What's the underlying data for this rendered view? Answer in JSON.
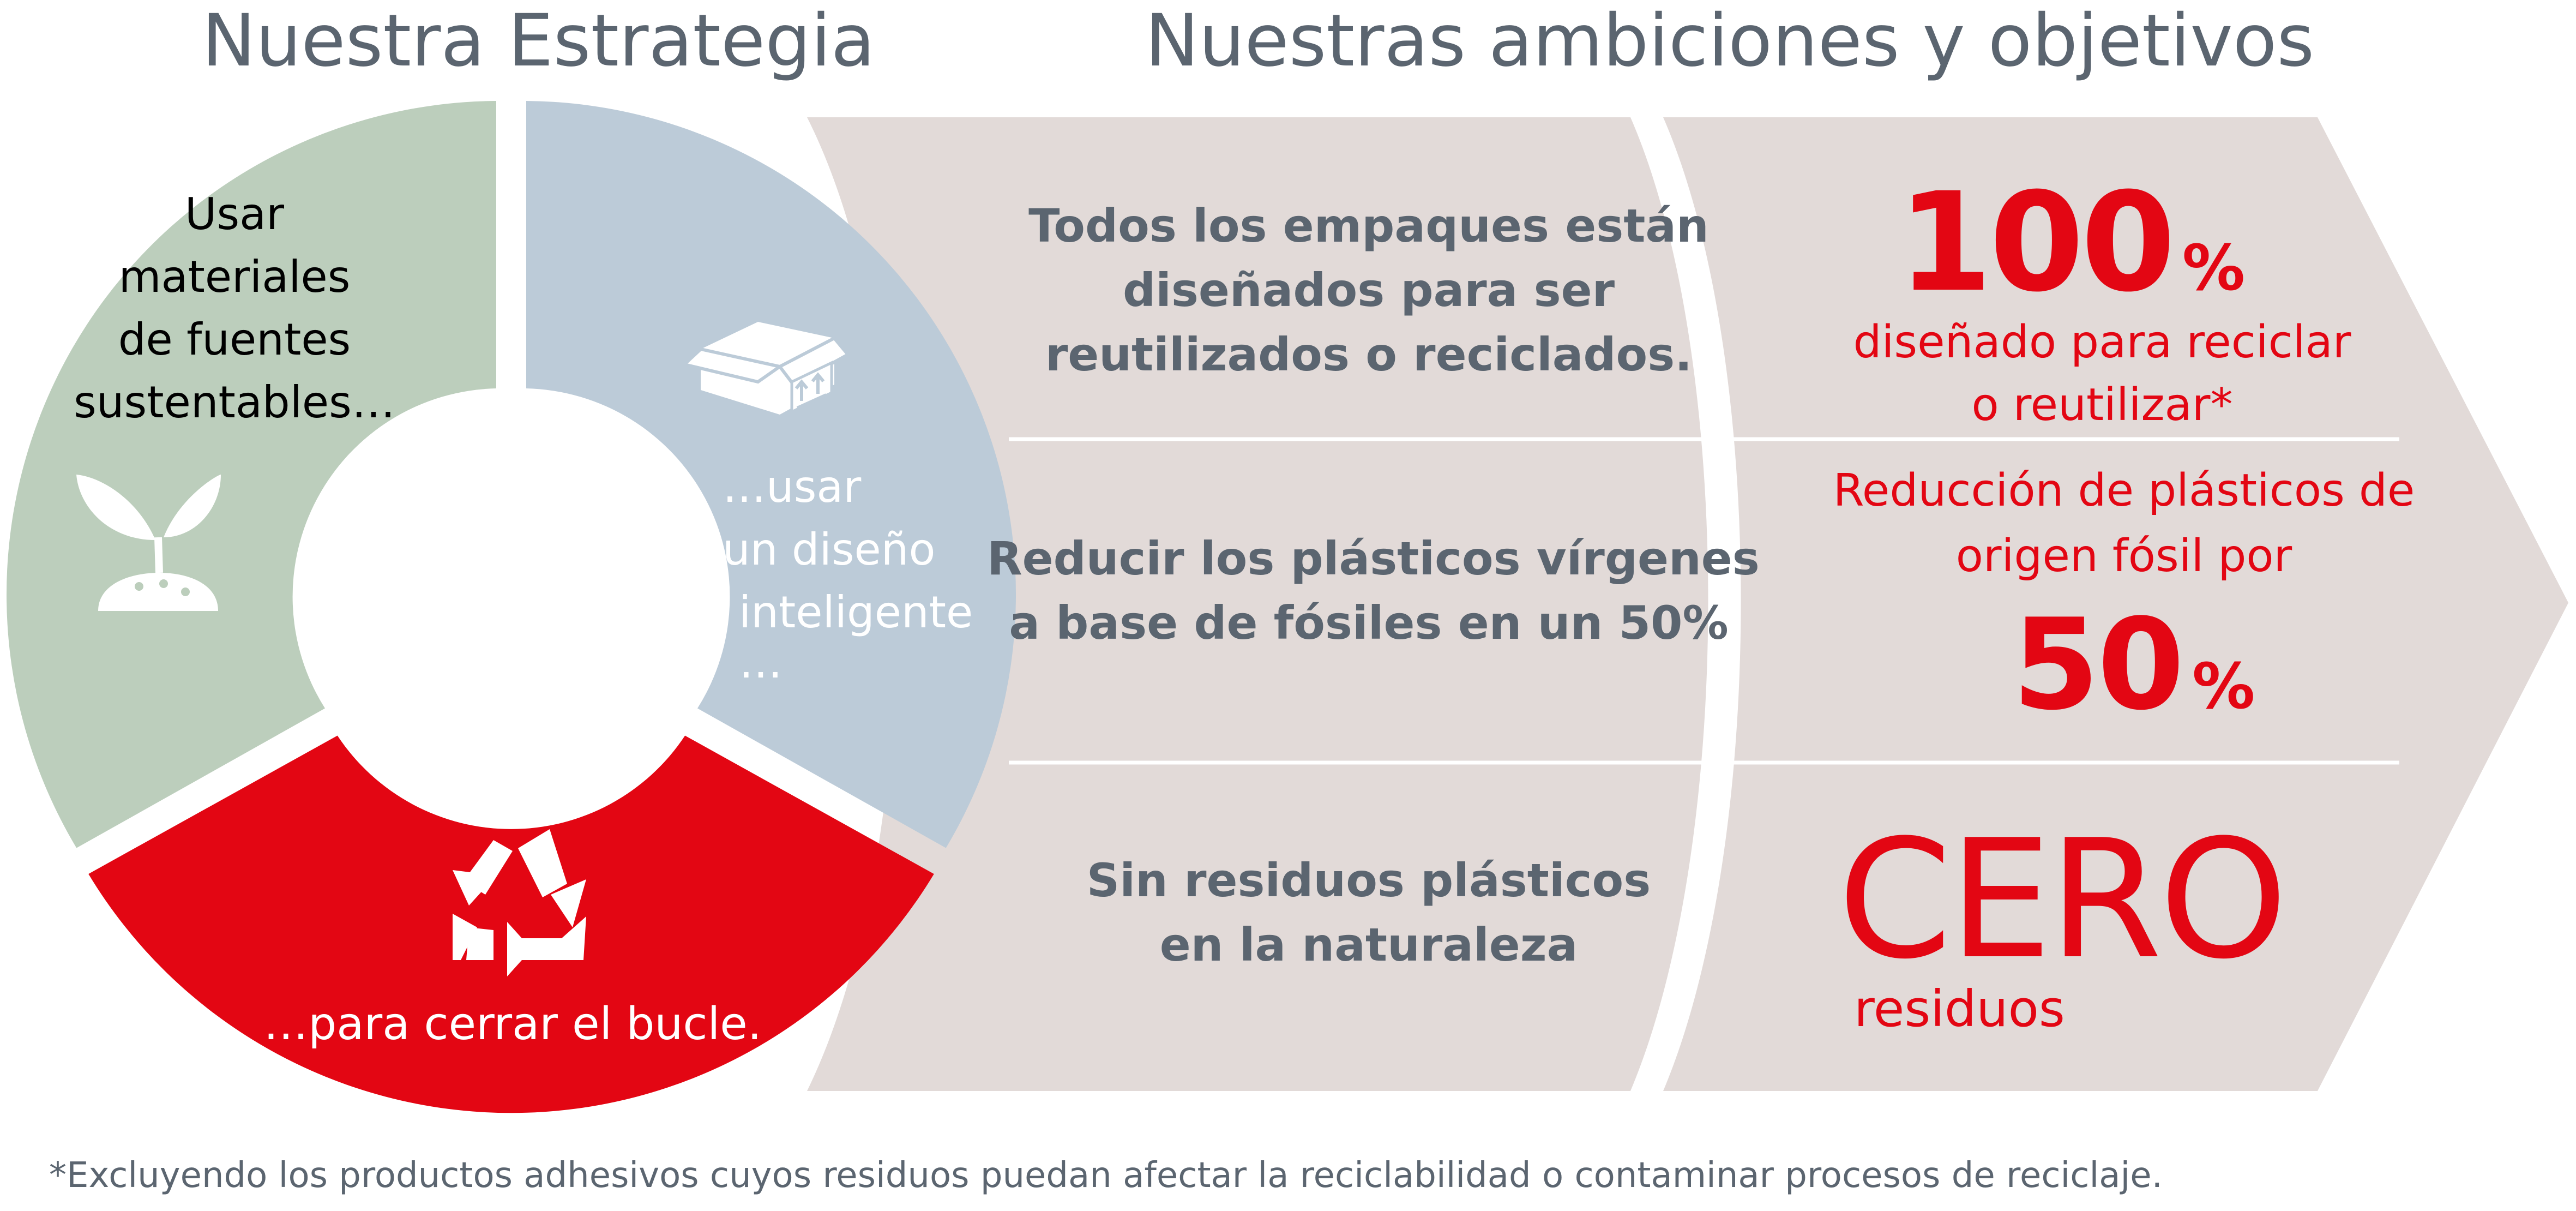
{
  "titles": {
    "strategy": "Nuestra Estrategia",
    "ambitions": "Nuestras ambiciones y objetivos"
  },
  "strategy": {
    "materials": {
      "lines": [
        "Usar",
        "materiales",
        "de fuentes",
        "sustentables…"
      ],
      "icon": "seedling-icon",
      "color": "#bccebc"
    },
    "design": {
      "lines": [
        "…usar",
        "un diseño",
        "inteligente",
        "…"
      ],
      "icon": "box-icon",
      "color": "#bccbd8"
    },
    "loop": {
      "text": "…para cerrar el bucle.",
      "icon": "recycle-icon",
      "color": "#e30613"
    }
  },
  "objectives": [
    {
      "text_lines": [
        "Todos los empaques están",
        "diseñados para ser",
        "reutilizados o reciclados."
      ],
      "target_number": "100",
      "target_unit": "%",
      "target_lines": [
        "diseñado para reciclar",
        "o reutilizar*"
      ]
    },
    {
      "text_lines": [
        "Reducir los plásticos vírgenes",
        "a base de fósiles en un 50%"
      ],
      "target_lines": [
        "Reducción de plásticos de",
        "origen fósil por"
      ],
      "target_number": "50",
      "target_unit": "%"
    },
    {
      "text_lines": [
        "Sin residuos plásticos",
        "en la naturaleza"
      ],
      "target_word": "CERO",
      "target_sub": "residuos"
    }
  ],
  "footnote": "*Excluyendo los productos adhesivos cuyos residuos puedan afectar la reciclabilidad o contaminar procesos de reciclaje.",
  "colors": {
    "accent_red": "#e30613",
    "panel_beige": "#e2dad8",
    "text_gray": "#5b6570"
  }
}
